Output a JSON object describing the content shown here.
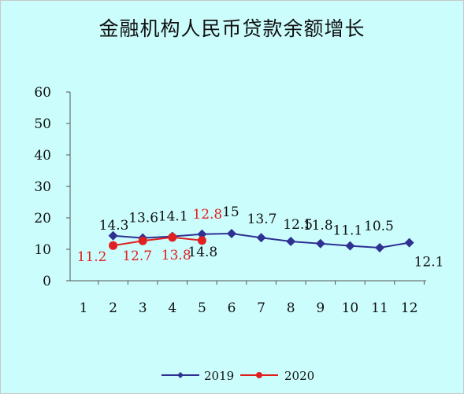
{
  "chart_data": {
    "type": "line",
    "title": "金融机构人民币贷款余额增长",
    "xlabel": "",
    "ylabel": "",
    "categories": [
      "1",
      "2",
      "3",
      "4",
      "5",
      "6",
      "7",
      "8",
      "9",
      "10",
      "11",
      "12"
    ],
    "ylim": [
      0,
      60
    ],
    "yticks": [
      "0",
      "10",
      "20",
      "30",
      "40",
      "50",
      "60"
    ],
    "grid": false,
    "legend_position": "bottom",
    "series": [
      {
        "name": "2019",
        "color": "#2e3192",
        "marker": "diamond",
        "values": [
          null,
          14.3,
          13.6,
          14.1,
          14.8,
          15,
          13.7,
          12.5,
          11.8,
          11.1,
          10.5,
          12.1
        ],
        "labels": [
          null,
          "14.3",
          "13.6",
          "14.1",
          "14.8",
          "15",
          "13.7",
          "12.5",
          "11.8",
          "11.1",
          "10.5",
          "12.1"
        ],
        "label_color": "#111111"
      },
      {
        "name": "2020",
        "color": "#e02020",
        "marker": "circle",
        "values": [
          null,
          11.2,
          12.7,
          13.8,
          12.8,
          null,
          null,
          null,
          null,
          null,
          null,
          null
        ],
        "labels": [
          null,
          "11.2",
          "12.7",
          "13.8",
          "12.8",
          null,
          null,
          null,
          null,
          null,
          null,
          null
        ],
        "label_color": "#e02020"
      }
    ]
  }
}
